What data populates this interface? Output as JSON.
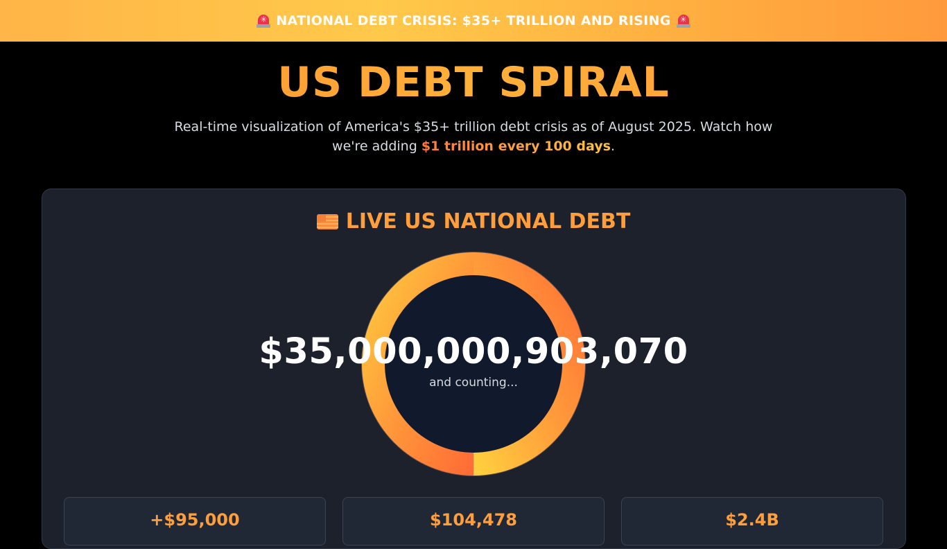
{
  "banner": {
    "text": "NATIONAL DEBT CRISIS: $35+ TRILLION AND RISING",
    "icon": "siren-icon"
  },
  "header": {
    "title": "US DEBT SPIRAL",
    "subtitle_before": "Real-time visualization of America's $35+ trillion debt crisis as of August 2025. Watch how we're adding ",
    "subtitle_highlight": "$1 trillion every 100 days",
    "subtitle_after": "."
  },
  "debt_panel": {
    "title": "LIVE US NATIONAL DEBT",
    "icon": "us-flag-icon",
    "amount": "$35,000,000,903,070",
    "caption": "and counting...",
    "colors": {
      "ring_start": "#ff6a35",
      "ring_end": "#ffd23f",
      "inner": "#111a2c",
      "panel": "#1c212b"
    }
  },
  "stats": [
    {
      "value": "+$95,000"
    },
    {
      "value": "$104,478"
    },
    {
      "value": "$2.4B"
    }
  ]
}
